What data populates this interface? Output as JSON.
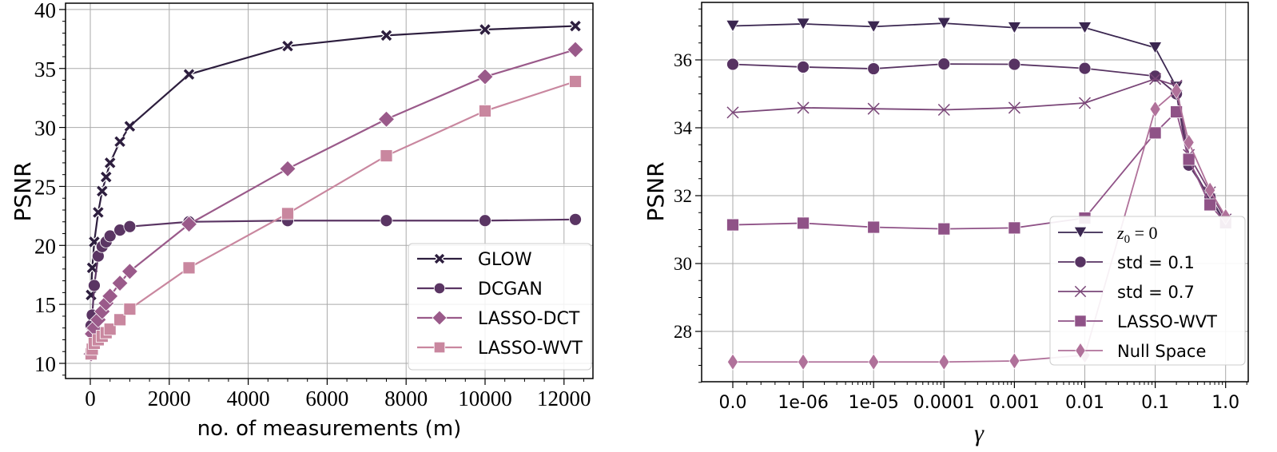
{
  "chart_data": [
    {
      "type": "line",
      "xlabel": "no. of measurements (m)",
      "ylabel": "PSNR",
      "xlim": [
        -630,
        12700
      ],
      "ylim": [
        8.8,
        40.5
      ],
      "xticks": [
        0,
        2000,
        4000,
        6000,
        8000,
        10000,
        12000
      ],
      "xtick_labels": [
        "0",
        "2000",
        "4000",
        "6000",
        "8000",
        "10000",
        "12000"
      ],
      "yticks": [
        10,
        15,
        20,
        25,
        30,
        35,
        40
      ],
      "ytick_labels": [
        "10",
        "15",
        "20",
        "25",
        "30",
        "35",
        "40"
      ],
      "grid": true,
      "legend_position": "lower-right",
      "x": [
        20,
        50,
        100,
        200,
        300,
        400,
        500,
        750,
        1000,
        2500,
        5000,
        7500,
        10000,
        12288
      ],
      "series": [
        {
          "name": "GLOW",
          "marker": "thick-x",
          "color": "#2d1e3e",
          "values": [
            15.8,
            18.1,
            20.3,
            22.8,
            24.6,
            25.8,
            27.0,
            28.8,
            30.1,
            34.5,
            36.9,
            37.8,
            38.3,
            38.6
          ]
        },
        {
          "name": "DCGAN",
          "marker": "circle",
          "color": "#5a3563",
          "values": [
            13.2,
            14.1,
            16.6,
            19.1,
            19.9,
            20.3,
            20.8,
            21.3,
            21.6,
            22.0,
            22.1,
            22.1,
            22.1,
            22.2
          ]
        },
        {
          "name": "LASSO-DCT",
          "marker": "diamond",
          "color": "#9a5a8a",
          "values": [
            10.8,
            12.5,
            13.0,
            13.7,
            14.4,
            15.1,
            15.7,
            16.8,
            17.8,
            21.8,
            26.5,
            30.7,
            34.3,
            36.6
          ]
        },
        {
          "name": "LASSO-WVT",
          "marker": "square",
          "color": "#c9879f",
          "values": [
            10.8,
            11.2,
            11.7,
            12.0,
            12.3,
            12.6,
            12.9,
            13.7,
            14.6,
            18.1,
            22.7,
            27.6,
            31.4,
            33.9
          ]
        }
      ]
    },
    {
      "type": "line",
      "xlabel": "γ",
      "ylabel": "PSNR",
      "xscale": "symlog",
      "ylim": [
        26.5,
        37.7
      ],
      "xtick_labels": [
        "0.0",
        "1e-06",
        "1e-05",
        "0.0001",
        "0.001",
        "0.01",
        "0.1",
        "1.0"
      ],
      "xticks": [
        0,
        1e-06,
        1e-05,
        0.0001,
        0.001,
        0.01,
        0.1,
        1.0
      ],
      "yticks": [
        28,
        30,
        32,
        34,
        36
      ],
      "ytick_labels": [
        "28",
        "30",
        "32",
        "34",
        "36"
      ],
      "grid": true,
      "legend_position": "lower-right",
      "x": [
        0,
        1e-06,
        1e-05,
        0.0001,
        0.001,
        0.01,
        0.1,
        0.2,
        0.3,
        0.6,
        1.0
      ],
      "series": [
        {
          "name": "z0 = 0",
          "legend_main": "z",
          "legend_sub": "0",
          "legend_rest": " = 0",
          "marker": "triangle-down",
          "color": "#3a2650",
          "values": [
            37.0,
            37.06,
            36.98,
            37.08,
            36.95,
            36.95,
            36.36,
            35.2,
            33.0,
            31.9,
            31.2
          ]
        },
        {
          "name": "std = 0.1",
          "marker": "circle",
          "color": "#573362",
          "values": [
            35.87,
            35.79,
            35.74,
            35.88,
            35.87,
            35.75,
            35.52,
            35.0,
            32.9,
            31.96,
            31.2
          ]
        },
        {
          "name": "std = 0.7",
          "marker": "thin-x",
          "color": "#7a4678",
          "values": [
            34.45,
            34.59,
            34.56,
            34.53,
            34.59,
            34.73,
            35.44,
            35.24,
            33.2,
            32.1,
            31.3
          ]
        },
        {
          "name": "LASSO-WVT",
          "marker": "square",
          "color": "#8f5287",
          "values": [
            31.14,
            31.19,
            31.07,
            31.02,
            31.05,
            31.34,
            33.85,
            34.47,
            33.07,
            31.73,
            31.2
          ]
        },
        {
          "name": "Null Space",
          "marker": "thin-diamond",
          "color": "#b0719a",
          "values": [
            27.1,
            27.1,
            27.1,
            27.1,
            27.13,
            27.3,
            34.55,
            35.09,
            33.57,
            32.16,
            31.38
          ]
        }
      ]
    }
  ]
}
